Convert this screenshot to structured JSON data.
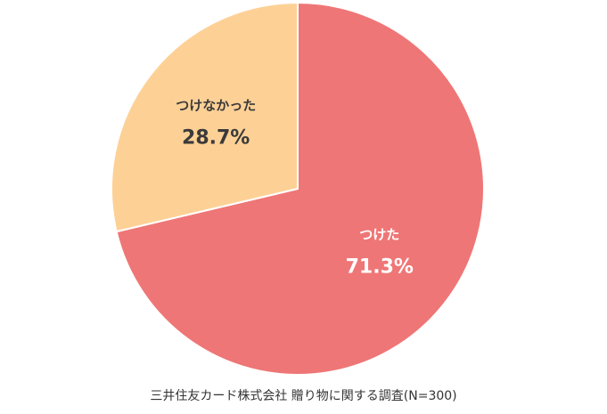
{
  "chart_data": {
    "type": "pie",
    "slices": [
      {
        "label": "つけた",
        "value": 71.3,
        "value_text": "71.3%",
        "color": "#ef7676",
        "text_color": "#ffffff"
      },
      {
        "label": "つけなかった",
        "value": 28.7,
        "value_text": "28.7%",
        "color": "#fdd196",
        "text_color": "#3a3a3a"
      }
    ],
    "start_angle_deg": 0,
    "direction": "clockwise",
    "separator_color": "#ffffff"
  },
  "source": "三井住友カード株式会社 贈り物に関する調査(N=300)"
}
